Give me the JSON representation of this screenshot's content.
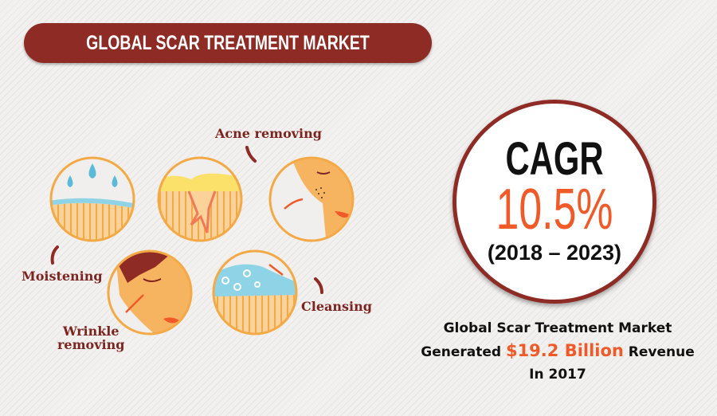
{
  "title": "GLOBAL SCAR TREATMENT MARKET",
  "treatments": [
    {
      "label": "Moistening",
      "icon": "water-drops-icon"
    },
    {
      "label": "Acne removing",
      "icon": "skin-crack-icon"
    },
    {
      "label": "Acne removing",
      "icon": "face-acne-icon"
    },
    {
      "label_line1": "Wrinkle",
      "label_line2": "removing",
      "icon": "face-wrinkle-icon"
    },
    {
      "label": "Cleansing",
      "icon": "foam-bubbles-icon"
    }
  ],
  "cagr": {
    "title": "CAGR",
    "value": "10.5%",
    "period": "(2018 – 2023)"
  },
  "summary": {
    "line1": "Global Scar Treatment Market",
    "line2_pre": "Generated ",
    "line2_highlight": "$19.2 Billion",
    "line2_post": " Revenue",
    "line3": "In 2017"
  },
  "colors": {
    "brand": "#8f2b25",
    "accent": "#f05a28",
    "skin": "#f7b460",
    "ring": "#f4a947"
  }
}
